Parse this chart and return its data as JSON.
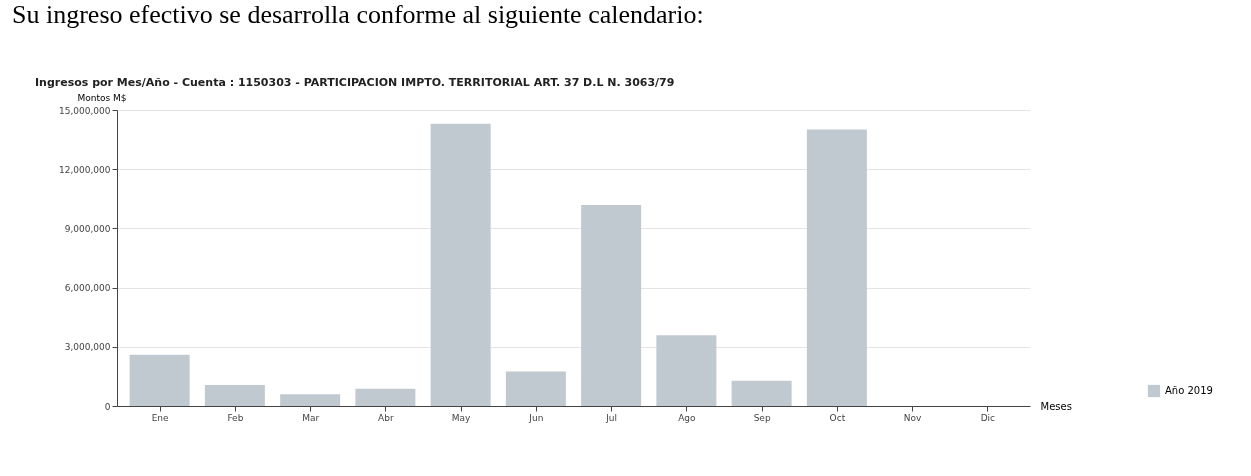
{
  "chart_data": {
    "type": "bar",
    "title": "Ingresos por Mes/Año - Cuenta : 1150303 - PARTICIPACION IMPTO. TERRITORIAL ART. 37 D.L N. 3063/79",
    "annotations": [
      "Su ingreso efectivo se desarrolla conforme al siguiente calendario:"
    ],
    "xlabel": "Meses",
    "ylabel": "Montos M$",
    "categories": [
      "Ene",
      "Feb",
      "Mar",
      "Abr",
      "May",
      "Jun",
      "Jul",
      "Ago",
      "Sep",
      "Oct",
      "Nov",
      "Dic"
    ],
    "series": [
      {
        "name": "Año 2019",
        "color": "#c1c9d0",
        "values": [
          2600000,
          1070000,
          600000,
          870000,
          14300000,
          1750000,
          10180000,
          3590000,
          1280000,
          14010000,
          null,
          null
        ]
      }
    ],
    "ylim": [
      0,
      15000000
    ],
    "yticks": [
      0,
      {
        "value": 3000000,
        "label": "3,000,000"
      },
      {
        "value": 6000000,
        "label": "6,000,000"
      },
      {
        "value": 9000000,
        "label": "9,000,000"
      },
      {
        "value": 12000000,
        "label": "12,000,000"
      },
      {
        "value": 15000000,
        "label": "15,000,000"
      }
    ],
    "grid": "y",
    "legend": "bottom right"
  }
}
